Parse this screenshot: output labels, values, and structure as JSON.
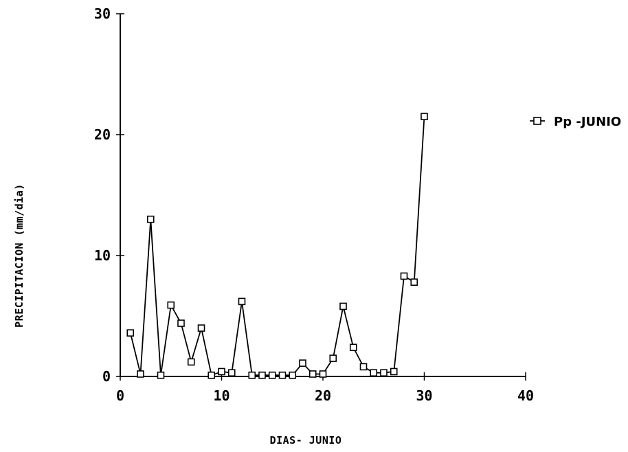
{
  "chart_data": {
    "type": "line",
    "xlabel": "DIAS- JUNIO",
    "ylabel": "PRECIPITACION (mm/dia)",
    "xlim": [
      0,
      40
    ],
    "ylim": [
      0,
      30
    ],
    "x_ticks": [
      0,
      10,
      20,
      30,
      40
    ],
    "y_ticks": [
      0,
      10,
      20,
      30
    ],
    "grid": false,
    "legend_position": "top-right",
    "series": [
      {
        "name": "Pp -JUNIO",
        "x": [
          1,
          2,
          3,
          4,
          5,
          6,
          7,
          8,
          9,
          10,
          11,
          12,
          13,
          14,
          15,
          16,
          17,
          18,
          19,
          20,
          21,
          22,
          23,
          24,
          25,
          26,
          27,
          28,
          29,
          30
        ],
        "y": [
          3.6,
          0.2,
          13,
          0.1,
          5.9,
          4.4,
          1.2,
          4,
          0.1,
          0.4,
          0.3,
          6.2,
          0.1,
          0.1,
          0.1,
          0.1,
          0.1,
          1.1,
          0.2,
          0.2,
          1.5,
          5.8,
          2.4,
          0.8,
          0.3,
          0.3,
          0.4,
          8.3,
          7.8,
          21.5
        ]
      }
    ]
  }
}
